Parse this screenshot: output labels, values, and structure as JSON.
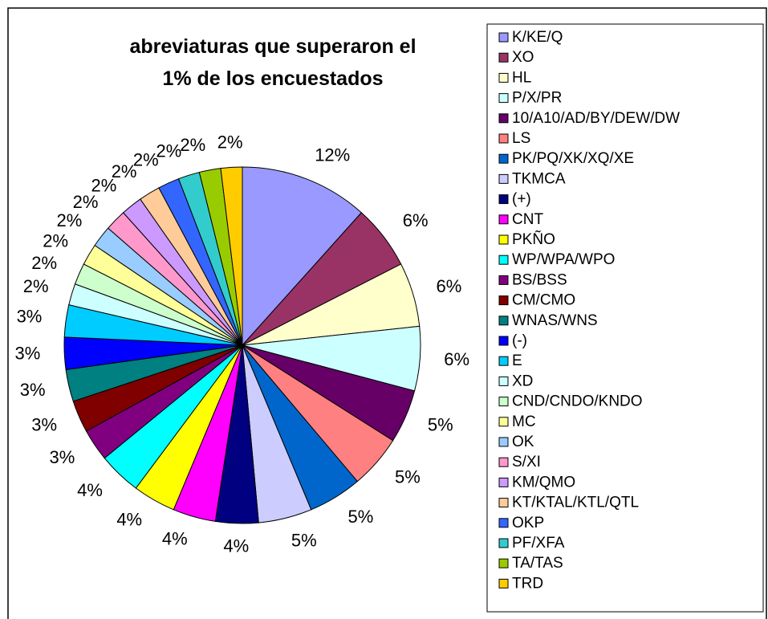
{
  "chart_data": {
    "type": "pie",
    "title": "abreviaturas que superaron el 1% de los encuestados",
    "categories": [
      "K/KE/Q",
      "XO",
      "HL",
      "P/X/PR",
      "10/A10/AD/BY/DEW/DW",
      "LS",
      "PK/PQ/XK/XQ/XE",
      "TKMCA",
      "(+)",
      "CNT",
      "PKÑO",
      "WP/WPA/WPO",
      "BS/BSS",
      "CM/CMO",
      "WNAS/WNS",
      "(-)",
      "E",
      "XD",
      "CND/CNDO/KNDO",
      "MC",
      "OK",
      "S/XI",
      "KM/QMO",
      "KT/KTAL/KTL/QTL",
      "OKP",
      "PF/XFA",
      "TA/TAS",
      "TRD"
    ],
    "values": [
      12,
      6,
      6,
      6,
      5,
      5,
      5,
      5,
      4,
      4,
      4,
      4,
      3,
      3,
      3,
      3,
      3,
      2,
      2,
      2,
      2,
      2,
      2,
      2,
      2,
      2,
      2,
      2
    ],
    "value_labels": [
      "12%",
      "6%",
      "6%",
      "6%",
      "5%",
      "5%",
      "5%",
      "5%",
      "4%",
      "4%",
      "4%",
      "4%",
      "3%",
      "3%",
      "3%",
      "3%",
      "3%",
      "2%",
      "2%",
      "2%",
      "2%",
      "2%",
      "2%",
      "2%",
      "2%",
      "2%",
      "2%",
      "2%"
    ],
    "colors": [
      "#9999FF",
      "#993366",
      "#FFFFCC",
      "#CCFFFF",
      "#660066",
      "#FF8080",
      "#0066CC",
      "#CCCCFF",
      "#000080",
      "#FF00FF",
      "#FFFF00",
      "#00FFFF",
      "#800080",
      "#800000",
      "#008080",
      "#0000FF",
      "#00CCFF",
      "#CCFFFF",
      "#CCFFCC",
      "#FFFF99",
      "#99CCFF",
      "#FF99CC",
      "#CC99FF",
      "#FFCC99",
      "#3366FF",
      "#33CCCC",
      "#99CC00",
      "#FFCC00"
    ],
    "legend": "right"
  }
}
